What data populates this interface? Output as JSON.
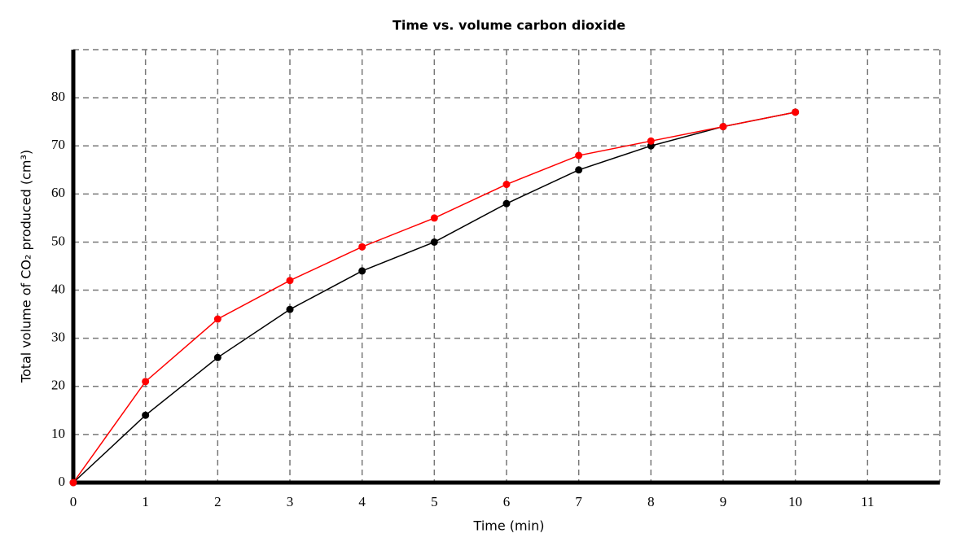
{
  "chart_data": {
    "type": "line",
    "title": "Time vs. volume carbon dioxide",
    "x_label": "Time (min)",
    "y_label": "Total volume of CO₂ produced (cm³)",
    "x": [
      0,
      1,
      2,
      3,
      4,
      5,
      6,
      7,
      8,
      9,
      10
    ],
    "series": [
      {
        "color": "#000000",
        "values": [
          0,
          14,
          26,
          36,
          44,
          50,
          58,
          65,
          70,
          74,
          77
        ]
      },
      {
        "color": "#ff0000",
        "values": [
          0,
          21,
          34,
          42,
          49,
          55,
          62,
          68,
          71,
          74,
          77
        ]
      }
    ],
    "xlim": [
      0,
      12
    ],
    "ylim": [
      0,
      90
    ],
    "xticks": [
      0,
      1,
      2,
      3,
      4,
      5,
      6,
      7,
      8,
      9,
      10,
      11
    ],
    "yticks": [
      0,
      10,
      20,
      30,
      40,
      50,
      60,
      70,
      80
    ],
    "grid": true
  }
}
